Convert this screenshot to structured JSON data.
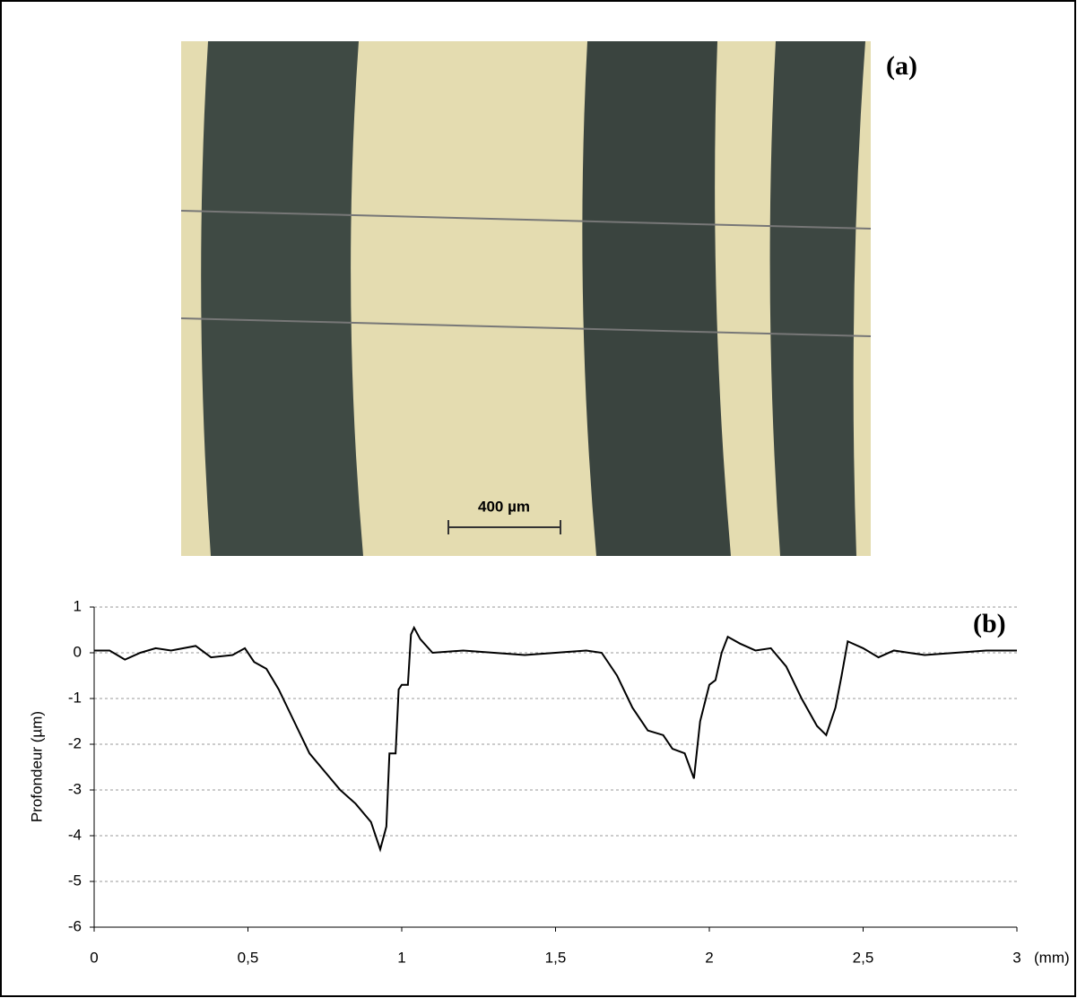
{
  "panel_a": {
    "label": "(a)",
    "scale_bar": "400 µm"
  },
  "chart_data": {
    "type": "line",
    "label": "(b)",
    "y_label": "Profondeur (µm)",
    "x_unit": "(mm)",
    "x": [
      0,
      0.05,
      0.1,
      0.15,
      0.2,
      0.25,
      0.33,
      0.38,
      0.45,
      0.49,
      0.52,
      0.56,
      0.6,
      0.65,
      0.7,
      0.75,
      0.8,
      0.85,
      0.9,
      0.93,
      0.95,
      0.96,
      0.98,
      0.99,
      1.0,
      1.02,
      1.03,
      1.04,
      1.06,
      1.1,
      1.2,
      1.3,
      1.4,
      1.5,
      1.6,
      1.65,
      1.7,
      1.75,
      1.8,
      1.85,
      1.88,
      1.92,
      1.95,
      1.97,
      2.0,
      2.02,
      2.04,
      2.06,
      2.1,
      2.15,
      2.2,
      2.25,
      2.3,
      2.35,
      2.38,
      2.41,
      2.43,
      2.45,
      2.5,
      2.55,
      2.6,
      2.7,
      2.8,
      2.9,
      3.0
    ],
    "series": [
      {
        "color": "#000000",
        "values": [
          0.05,
          0.05,
          -0.15,
          0,
          0.1,
          0.05,
          0.15,
          -0.1,
          -0.05,
          0.1,
          -0.2,
          -0.35,
          -0.8,
          -1.5,
          -2.2,
          -2.6,
          -3.0,
          -3.3,
          -3.7,
          -4.3,
          -3.8,
          -2.2,
          -2.2,
          -0.8,
          -0.7,
          -0.7,
          0.4,
          0.55,
          0.3,
          0,
          0.05,
          0,
          -0.05,
          0,
          0.05,
          0,
          -0.5,
          -1.2,
          -1.7,
          -1.8,
          -2.1,
          -2.2,
          -2.75,
          -1.5,
          -0.7,
          -0.6,
          0,
          0.35,
          0.2,
          0.05,
          0.1,
          -0.3,
          -1.0,
          -1.6,
          -1.8,
          -1.2,
          -0.5,
          0.25,
          0.1,
          -0.1,
          0.05,
          -0.05,
          0,
          0.05,
          0.05
        ]
      }
    ],
    "xlim": [
      0,
      3
    ],
    "xticks": [
      0,
      {
        "value": 0.5,
        "label": "0,5"
      },
      1,
      {
        "value": 1.5,
        "label": "1,5"
      },
      2,
      {
        "value": 2.5,
        "label": "2,5"
      },
      3
    ],
    "ylim": [
      -6,
      1
    ],
    "yticks": [
      1,
      0,
      -1,
      -2,
      -3,
      -4,
      -5,
      -6
    ],
    "grid": true,
    "grid_color": "#999999"
  }
}
